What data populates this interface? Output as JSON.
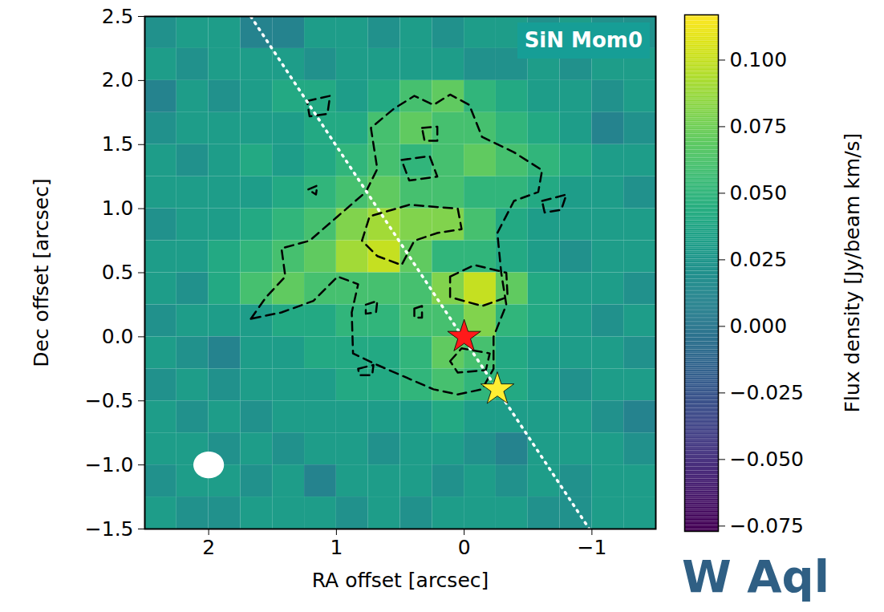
{
  "chart_data": {
    "type": "image",
    "title": "SiN Mom0",
    "xlabel": "RA offset [arcsec]",
    "ylabel": "Dec offset [arcsec]",
    "xlim": [
      2.5,
      -1.5
    ],
    "ylim": [
      -1.5,
      2.5
    ],
    "xticks": [
      2,
      1,
      0,
      {
        "value": -1,
        "label": "−1"
      }
    ],
    "yticks": [
      {
        "value": 2.5,
        "label": "2.5"
      },
      {
        "value": 2.0,
        "label": "2.0"
      },
      {
        "value": 1.5,
        "label": "1.5"
      },
      {
        "value": 1.0,
        "label": "1.0"
      },
      {
        "value": 0.5,
        "label": "0.5"
      },
      {
        "value": 0.0,
        "label": "0.0"
      },
      {
        "value": -0.5,
        "label": "−0.5"
      },
      {
        "value": -1.0,
        "label": "−1.0"
      },
      {
        "value": -1.5,
        "label": "−1.5"
      }
    ],
    "cells": {
      "ra": [
        2.375,
        2.125,
        1.875,
        1.625,
        1.375,
        1.125,
        0.875,
        0.625,
        0.375,
        0.125,
        -0.125,
        -0.375,
        -0.625,
        -0.875,
        -1.125,
        -1.375
      ],
      "dec": [
        2.375,
        2.125,
        1.875,
        1.625,
        1.375,
        1.125,
        0.875,
        0.625,
        0.375,
        0.125,
        -0.125,
        -0.375,
        -0.625,
        -0.875,
        -1.125,
        -1.375
      ],
      "values": [
        [
          0.02,
          0.03,
          0.03,
          0.01,
          0.01,
          0.03,
          0.03,
          0.02,
          0.03,
          0.02,
          0.03,
          0.03,
          0.02,
          0.03,
          0.02,
          0.02
        ],
        [
          0.03,
          0.02,
          0.03,
          0.03,
          0.03,
          0.02,
          0.03,
          0.03,
          0.03,
          0.03,
          0.02,
          0.02,
          0.03,
          0.02,
          0.03,
          0.03
        ],
        [
          0.01,
          0.03,
          0.02,
          0.03,
          0.04,
          0.04,
          0.03,
          0.04,
          0.06,
          0.07,
          0.05,
          0.04,
          0.03,
          0.03,
          0.02,
          0.03
        ],
        [
          0.02,
          0.03,
          0.03,
          0.03,
          0.03,
          0.04,
          0.04,
          0.06,
          0.07,
          0.06,
          0.06,
          0.05,
          0.04,
          0.03,
          0.01,
          0.02
        ],
        [
          0.03,
          0.02,
          0.03,
          0.04,
          0.03,
          0.04,
          0.05,
          0.06,
          0.05,
          0.06,
          0.07,
          0.06,
          0.05,
          0.04,
          0.03,
          0.03
        ],
        [
          0.03,
          0.03,
          0.03,
          0.03,
          0.04,
          0.05,
          0.06,
          0.07,
          0.06,
          0.06,
          0.05,
          0.05,
          0.04,
          0.03,
          0.03,
          0.02
        ],
        [
          0.02,
          0.03,
          0.03,
          0.04,
          0.05,
          0.06,
          0.08,
          0.09,
          0.08,
          0.08,
          0.06,
          0.04,
          0.03,
          0.03,
          0.03,
          0.03
        ],
        [
          0.03,
          0.03,
          0.04,
          0.05,
          0.06,
          0.07,
          0.09,
          0.1,
          0.07,
          0.05,
          0.05,
          0.04,
          0.03,
          0.02,
          0.03,
          0.03
        ],
        [
          0.03,
          0.02,
          0.04,
          0.06,
          0.07,
          0.06,
          0.06,
          0.06,
          0.06,
          0.08,
          0.1,
          0.07,
          0.04,
          0.03,
          0.03,
          0.02
        ],
        [
          0.02,
          0.03,
          0.03,
          0.03,
          0.04,
          0.04,
          0.05,
          0.05,
          0.06,
          0.06,
          0.08,
          0.05,
          0.04,
          0.03,
          0.02,
          0.03
        ],
        [
          0.03,
          0.02,
          0.01,
          0.03,
          0.03,
          0.04,
          0.04,
          0.04,
          0.05,
          0.07,
          0.06,
          0.04,
          0.03,
          0.03,
          0.03,
          0.02
        ],
        [
          0.02,
          0.03,
          0.02,
          0.03,
          0.03,
          0.03,
          0.04,
          0.04,
          0.05,
          0.06,
          0.05,
          0.04,
          0.03,
          0.02,
          0.03,
          0.03
        ],
        [
          0.03,
          0.02,
          0.03,
          0.02,
          0.03,
          0.03,
          0.03,
          0.03,
          0.03,
          0.04,
          0.03,
          0.03,
          0.03,
          0.03,
          0.02,
          0.01
        ],
        [
          0.03,
          0.03,
          0.02,
          0.03,
          0.02,
          0.03,
          0.03,
          0.02,
          0.03,
          0.03,
          0.02,
          0.01,
          0.03,
          0.03,
          0.03,
          0.02
        ],
        [
          0.02,
          0.03,
          0.03,
          0.02,
          0.03,
          0.01,
          0.03,
          0.03,
          0.03,
          0.02,
          0.03,
          0.02,
          0.03,
          0.02,
          0.03,
          0.03
        ],
        [
          0.03,
          0.02,
          0.02,
          0.03,
          0.03,
          0.03,
          0.02,
          0.03,
          0.02,
          0.03,
          0.03,
          0.03,
          0.02,
          0.02,
          0.03,
          0.03
        ]
      ]
    },
    "colorbar": {
      "label": "Flux density [Jy/beam km/s]",
      "range": [
        -0.077,
        0.117
      ],
      "color": "viridis",
      "ticks": [
        {
          "value": -0.075,
          "label": "−0.075"
        },
        {
          "value": -0.05,
          "label": "−0.050"
        },
        {
          "value": -0.025,
          "label": "−0.025"
        },
        {
          "value": 0,
          "label": "0.000"
        },
        {
          "value": 0.025,
          "label": "0.025"
        },
        {
          "value": 0.05,
          "label": "0.050"
        },
        {
          "value": 0.075,
          "label": "0.075"
        },
        {
          "value": 0.1,
          "label": "0.100"
        }
      ]
    },
    "contours": {
      "color": "#000000",
      "line_style": "dashed",
      "paths": [
        [
          [
            1.67,
            0.14
          ],
          [
            1.55,
            0.31
          ],
          [
            1.4,
            0.47
          ],
          [
            1.43,
            0.69
          ],
          [
            1.21,
            0.75
          ],
          [
            0.99,
            0.94
          ],
          [
            0.77,
            1.13
          ],
          [
            0.68,
            1.31
          ],
          [
            0.73,
            1.63
          ],
          [
            0.55,
            1.78
          ],
          [
            0.39,
            1.88
          ],
          [
            0.24,
            1.81
          ],
          [
            0.11,
            1.89
          ],
          [
            -0.04,
            1.81
          ],
          [
            -0.14,
            1.56
          ],
          [
            -0.39,
            1.44
          ],
          [
            -0.61,
            1.3
          ],
          [
            -0.58,
            1.13
          ],
          [
            -0.39,
            1.06
          ],
          [
            -0.26,
            0.81
          ],
          [
            -0.29,
            0.5
          ],
          [
            -0.33,
            0.25
          ],
          [
            -0.23,
            0.0
          ],
          [
            -0.23,
            -0.25
          ],
          [
            -0.14,
            -0.41
          ],
          [
            0.05,
            -0.45
          ],
          [
            0.24,
            -0.41
          ],
          [
            0.68,
            -0.22
          ],
          [
            0.87,
            -0.13
          ],
          [
            0.88,
            0.19
          ],
          [
            0.83,
            0.41
          ],
          [
            0.99,
            0.47
          ],
          [
            1.18,
            0.28
          ],
          [
            1.43,
            0.19
          ]
        ],
        [
          [
            0.8,
            0.75
          ],
          [
            0.74,
            0.94
          ],
          [
            0.43,
            1.03
          ],
          [
            0.05,
            1.0
          ],
          [
            0.02,
            0.84
          ],
          [
            0.21,
            0.81
          ],
          [
            0.39,
            0.75
          ],
          [
            0.49,
            0.56
          ],
          [
            0.68,
            0.63
          ]
        ],
        [
          [
            0.11,
            0.47
          ],
          [
            -0.08,
            0.56
          ],
          [
            -0.33,
            0.5
          ],
          [
            -0.34,
            0.31
          ],
          [
            -0.14,
            0.24
          ],
          [
            0.11,
            0.31
          ]
        ],
        [
          [
            0.11,
            -0.19
          ],
          [
            0.02,
            -0.09
          ],
          [
            -0.2,
            -0.13
          ],
          [
            -0.17,
            -0.26
          ],
          [
            0.05,
            -0.28
          ]
        ],
        [
          [
            0.49,
            1.38
          ],
          [
            0.27,
            1.41
          ],
          [
            0.21,
            1.25
          ],
          [
            0.43,
            1.22
          ]
        ],
        [
          [
            0.33,
            1.63
          ],
          [
            0.21,
            1.64
          ],
          [
            0.21,
            1.53
          ],
          [
            0.31,
            1.53
          ]
        ],
        [
          [
            1.23,
            1.84
          ],
          [
            1.05,
            1.88
          ],
          [
            1.07,
            1.74
          ],
          [
            1.21,
            1.72
          ]
        ],
        [
          [
            1.22,
            1.15
          ],
          [
            1.15,
            1.18
          ],
          [
            1.16,
            1.11
          ]
        ],
        [
          [
            -0.61,
            1.06
          ],
          [
            -0.8,
            1.11
          ],
          [
            -0.76,
            0.99
          ],
          [
            -0.63,
            0.97
          ]
        ],
        [
          [
            0.83,
            -0.25
          ],
          [
            0.71,
            -0.22
          ],
          [
            0.72,
            -0.3
          ],
          [
            0.82,
            -0.3
          ]
        ],
        [
          [
            0.77,
            0.25
          ],
          [
            0.68,
            0.28
          ],
          [
            0.69,
            0.19
          ],
          [
            0.77,
            0.18
          ]
        ],
        [
          [
            0.39,
            0.22
          ],
          [
            0.33,
            0.24
          ],
          [
            0.33,
            0.15
          ],
          [
            0.39,
            0.15
          ]
        ]
      ]
    },
    "line": {
      "ra": [
        1.67,
        -0.98
      ],
      "dec": [
        2.5,
        -1.5
      ],
      "line_style": "dotted",
      "color": "#ffffff"
    },
    "markers": [
      {
        "ra": 0.0,
        "dec": 0.0,
        "marker": "star",
        "color": "#ff1a1a"
      },
      {
        "ra": -0.26,
        "dec": -0.41,
        "marker": "star",
        "color": "#ffee33"
      }
    ],
    "beam": {
      "ra": 2.0,
      "dec": -1.0,
      "width": 0.23,
      "height": 0.2,
      "color": "#ffffff"
    },
    "annotation": "W Aql"
  }
}
